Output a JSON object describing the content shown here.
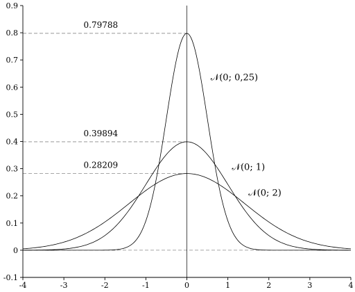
{
  "chart_data": {
    "type": "line",
    "title": "",
    "xlabel": "",
    "ylabel": "",
    "xlim": [
      -4,
      4
    ],
    "ylim": [
      -0.1,
      0.9
    ],
    "x_ticks": [
      -4,
      -3,
      -2,
      -1,
      0,
      1,
      2,
      3,
      4
    ],
    "x_tick_labels": [
      "-4",
      "-3",
      "-2",
      "-1",
      "0",
      "1",
      "2",
      "3",
      "4"
    ],
    "y_ticks": [
      -0.1,
      0,
      0.1,
      0.2,
      0.3,
      0.4,
      0.5,
      0.6,
      0.7,
      0.8,
      0.9
    ],
    "y_tick_labels": [
      "-0.1",
      "0",
      "0.1",
      "0.2",
      "0.3",
      "0.4",
      "0.5",
      "0.6",
      "0.7",
      "0.8",
      "0.9"
    ],
    "grid": false,
    "series": [
      {
        "name": "𝒩(0;  0,25)",
        "mean": 0,
        "variance": 0.25,
        "peak": 0.79788,
        "peak_label": "0.79788",
        "label_at": [
          0.58,
          0.625
        ]
      },
      {
        "name": "𝒩(0;  1)",
        "mean": 0,
        "variance": 1,
        "peak": 0.39894,
        "peak_label": "0.39894",
        "label_at": [
          1.1,
          0.295
        ]
      },
      {
        "name": "𝒩(0;  2)",
        "mean": 0,
        "variance": 2,
        "peak": 0.28209,
        "peak_label": "0.28209",
        "label_at": [
          1.5,
          0.2
        ]
      }
    ]
  }
}
